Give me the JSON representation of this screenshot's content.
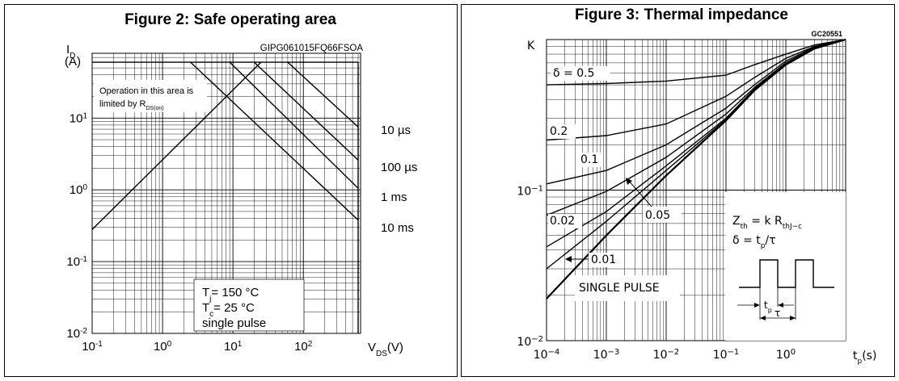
{
  "chart_data": [
    {
      "type": "line",
      "title": "Figure 2: Safe operating area",
      "code": "GIPG061015FQ66FSOA",
      "ylabel": "I",
      "ylabel_sub": "D",
      "ylabel_unit": "(A)",
      "xlabel": "V",
      "xlabel_sub": "DS",
      "xlabel_unit": "(V)",
      "x_scale": "log",
      "y_scale": "log",
      "xlim": [
        0.1,
        650
      ],
      "ylim": [
        0.01,
        80
      ],
      "x_ticks": [
        {
          "base": "10",
          "exp": "-1",
          "value": 0.1
        },
        {
          "base": "10",
          "exp": "0",
          "value": 1
        },
        {
          "base": "10",
          "exp": "1",
          "value": 10
        },
        {
          "base": "10",
          "exp": "2",
          "value": 100
        }
      ],
      "y_ticks": [
        {
          "base": "10",
          "exp": "-2",
          "value": 0.01
        },
        {
          "base": "10",
          "exp": "-1",
          "value": 0.1
        },
        {
          "base": "10",
          "exp": "0",
          "value": 1
        },
        {
          "base": "10",
          "exp": "1",
          "value": 10
        }
      ],
      "rds_limit": {
        "x": [
          0.1,
          25
        ],
        "y": [
          0.28,
          60
        ]
      },
      "series": [
        {
          "name": "10 µs",
          "x": [
            60,
            600
          ],
          "y": [
            60,
            7.5
          ]
        },
        {
          "name": "100 µs",
          "x": [
            20,
            600
          ],
          "y": [
            60,
            2.6
          ]
        },
        {
          "name": "1 ms",
          "x": [
            9,
            600
          ],
          "y": [
            60,
            1.05
          ]
        },
        {
          "name": "10 ms",
          "x": [
            2.5,
            600
          ],
          "y": [
            60,
            0.38
          ]
        }
      ],
      "current_limit": {
        "x": [
          0.1,
          600
        ],
        "y": [
          60,
          60
        ]
      },
      "voltage_limit": {
        "x": [
          600,
          600
        ],
        "y": [
          0.01,
          60
        ]
      },
      "annotation": {
        "line1": "Operation in this area is",
        "line2": "limited by R",
        "line2_sub": "DS(on)"
      },
      "legend": [
        {
          "text": "T",
          "sub": "j",
          "rest": "= 150 °C"
        },
        {
          "text": "T",
          "sub": "c",
          "rest": "= 25 °C"
        },
        {
          "text": "single pulse",
          "sub": "",
          "rest": ""
        }
      ],
      "legend_placement": "bottom-center",
      "grid": true
    },
    {
      "type": "line",
      "title": "Figure 3: Thermal impedance",
      "code": "GC20551",
      "ylabel": "K",
      "xlabel": "t",
      "xlabel_sub": "p",
      "xlabel_unit": "(s)",
      "x_scale": "log",
      "y_scale": "log",
      "xlim": [
        0.0001,
        10
      ],
      "ylim": [
        0.01,
        1
      ],
      "x_ticks": [
        {
          "base": "10",
          "exp": "−4",
          "value": 0.0001
        },
        {
          "base": "10",
          "exp": "−3",
          "value": 0.001
        },
        {
          "base": "10",
          "exp": "−2",
          "value": 0.01
        },
        {
          "base": "10",
          "exp": "−1",
          "value": 0.1
        },
        {
          "base": "10",
          "exp": "0",
          "value": 1
        }
      ],
      "y_ticks": [
        {
          "base": "10",
          "exp": "−2",
          "value": 0.01
        },
        {
          "base": "10",
          "exp": "−1",
          "value": 0.1
        }
      ],
      "series": [
        {
          "name": "δ = 0.5",
          "x": [
            0.0001,
            0.001,
            0.01,
            0.1,
            0.3,
            1,
            3,
            10
          ],
          "y": [
            0.5,
            0.51,
            0.53,
            0.58,
            0.68,
            0.8,
            0.92,
            1.0
          ]
        },
        {
          "name": "0.2",
          "x": [
            0.0001,
            0.001,
            0.01,
            0.1,
            0.3,
            1,
            3,
            10
          ],
          "y": [
            0.215,
            0.23,
            0.275,
            0.42,
            0.56,
            0.75,
            0.9,
            1.0
          ]
        },
        {
          "name": "0.1",
          "x": [
            0.0001,
            0.001,
            0.01,
            0.1,
            0.3,
            1,
            3,
            10
          ],
          "y": [
            0.11,
            0.135,
            0.2,
            0.35,
            0.5,
            0.72,
            0.89,
            1.0
          ]
        },
        {
          "name": "0.05",
          "x": [
            0.0001,
            0.001,
            0.01,
            0.1,
            0.3,
            1,
            3,
            10
          ],
          "y": [
            0.068,
            0.098,
            0.165,
            0.32,
            0.48,
            0.7,
            0.88,
            1.0
          ]
        },
        {
          "name": "0.02",
          "x": [
            0.0001,
            0.001,
            0.01,
            0.1,
            0.3,
            1,
            3,
            10
          ],
          "y": [
            0.042,
            0.072,
            0.145,
            0.3,
            0.47,
            0.69,
            0.88,
            1.0
          ]
        },
        {
          "name": "0.01",
          "x": [
            0.0001,
            0.001,
            0.01,
            0.1,
            0.3,
            1,
            3,
            10
          ],
          "y": [
            0.03,
            0.062,
            0.135,
            0.295,
            0.46,
            0.69,
            0.88,
            1.0
          ]
        },
        {
          "name": "SINGLE PULSE",
          "x": [
            0.0001,
            0.001,
            0.01,
            0.1,
            0.3,
            1,
            3,
            10
          ],
          "y": [
            0.019,
            0.05,
            0.125,
            0.29,
            0.46,
            0.68,
            0.87,
            1.0
          ]
        }
      ],
      "formula1": {
        "text": "Z",
        "sub": "th",
        "rest": " = k R",
        "sub2": "thJ−c"
      },
      "formula2": {
        "text": "δ = t",
        "sub": "p",
        "rest": "/τ"
      },
      "pulse_label_tp": "t",
      "pulse_label_tp_sub": "p",
      "pulse_label_tau": "τ",
      "grid": true
    }
  ]
}
